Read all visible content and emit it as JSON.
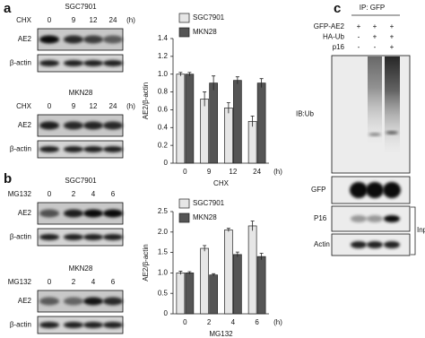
{
  "panel_a": {
    "letter": "a",
    "blots": [
      {
        "title": "SGC7901",
        "treatment": "CHX",
        "lanes": [
          "0",
          "9",
          "12",
          "24"
        ],
        "unit": "(h)",
        "rows": [
          "AE2",
          "β-actin"
        ]
      },
      {
        "title": "MKN28",
        "treatment": "CHX",
        "lanes": [
          "0",
          "9",
          "12",
          "24"
        ],
        "unit": "(h)",
        "rows": [
          "AE2",
          "β-actin"
        ]
      }
    ]
  },
  "panel_b": {
    "letter": "b",
    "blots": [
      {
        "title": "SGC7901",
        "treatment": "MG132",
        "lanes": [
          "0",
          "2",
          "4",
          "6"
        ],
        "rows": [
          "AE2",
          "β-actin"
        ]
      },
      {
        "title": "MKN28",
        "treatment": "MG132",
        "lanes": [
          "0",
          "2",
          "4",
          "6"
        ],
        "rows": [
          "AE2",
          "β-actin"
        ]
      }
    ]
  },
  "panel_c": {
    "letter": "c",
    "ip": "IP: GFP",
    "conditions": [
      {
        "label": "GFP-AE2",
        "signs": [
          "+",
          "+",
          "+"
        ]
      },
      {
        "label": "HA-Ub",
        "signs": [
          "-",
          "+",
          "+"
        ]
      },
      {
        "label": "p16",
        "signs": [
          "-",
          "-",
          "+"
        ]
      }
    ],
    "blots": [
      "IB:Ub",
      "GFP",
      "P16",
      "Actin"
    ],
    "input": "Input"
  },
  "chart_data": [
    {
      "type": "bar",
      "x_label": "CHX",
      "y_label": "AE2/β-actin",
      "unit": "(h)",
      "categories": [
        "0",
        "9",
        "12",
        "24"
      ],
      "series": [
        {
          "name": "SGC7901",
          "color": "#e6e6e6",
          "values": [
            1.0,
            0.72,
            0.62,
            0.47
          ],
          "errors": [
            0.02,
            0.08,
            0.06,
            0.06
          ]
        },
        {
          "name": "MKN28",
          "color": "#555555",
          "values": [
            1.0,
            0.9,
            0.93,
            0.9
          ],
          "errors": [
            0.02,
            0.08,
            0.04,
            0.05
          ]
        }
      ],
      "ylim": [
        0,
        1.4
      ],
      "yticks": [
        0,
        0.2,
        0.4,
        0.6,
        0.8,
        {
          "value": 1,
          "label": "1.0"
        },
        1.2,
        1.4
      ]
    },
    {
      "type": "bar",
      "x_label": "MG132",
      "y_label": "AE2/β-actin",
      "unit": "(h)",
      "categories": [
        "0",
        "2",
        "4",
        "6"
      ],
      "series": [
        {
          "name": "SGC7901",
          "color": "#e6e6e6",
          "values": [
            1.0,
            1.6,
            2.05,
            2.15
          ],
          "errors": [
            0.04,
            0.07,
            0.04,
            0.12
          ]
        },
        {
          "name": "MKN28",
          "color": "#555555",
          "values": [
            1.0,
            0.95,
            1.45,
            1.4
          ],
          "errors": [
            0.03,
            0.03,
            0.06,
            0.08
          ]
        }
      ],
      "ylim": [
        0,
        2.5
      ],
      "yticks": [
        0,
        0.5,
        {
          "value": 1,
          "label": "1.0"
        },
        1.5,
        {
          "value": 2,
          "label": "2.0"
        },
        2.5
      ]
    }
  ]
}
